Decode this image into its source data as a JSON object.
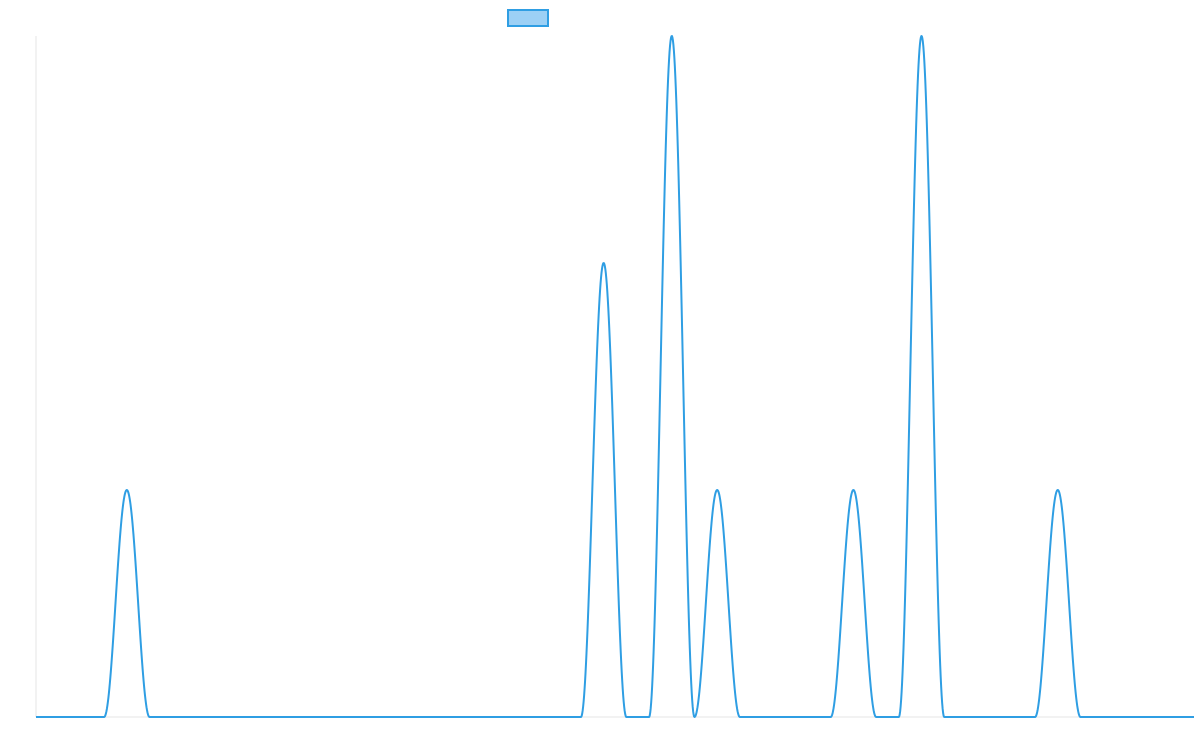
{
  "chart_data": {
    "type": "line",
    "title": "",
    "xlabel": "",
    "ylabel": "",
    "grid": false,
    "legend": {
      "position": "top-center",
      "entries": [
        {
          "label": "",
          "swatch_color": "#9cd0f5",
          "border_color": "#2f9ee3"
        }
      ]
    },
    "colors": {
      "line": "#2f9ee3",
      "axis": "#e6e6e6"
    },
    "xlim": [
      0,
      102
    ],
    "ylim": [
      0,
      3
    ],
    "series": [
      {
        "peaks": [
          {
            "x": 8,
            "y": 1
          },
          {
            "x": 50,
            "y": 2
          },
          {
            "x": 56,
            "y": 3
          },
          {
            "x": 60,
            "y": 1
          },
          {
            "x": 72,
            "y": 1
          },
          {
            "x": 78,
            "y": 3
          },
          {
            "x": 90,
            "y": 1
          }
        ],
        "peak_half_width": 2
      }
    ]
  }
}
